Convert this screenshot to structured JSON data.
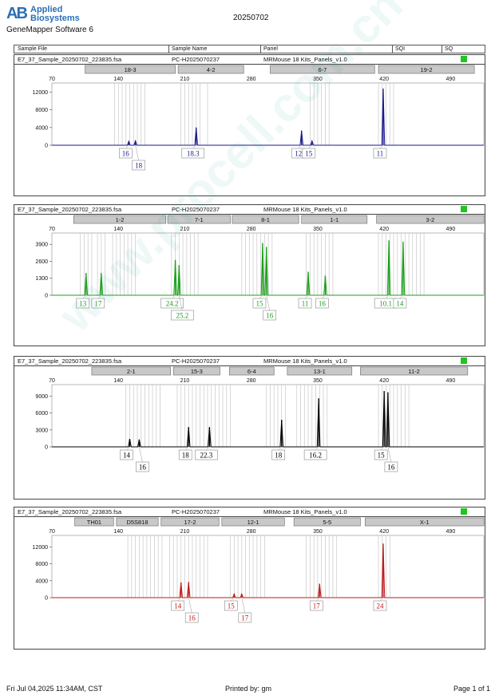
{
  "header": {
    "brand": "Applied Biosystems",
    "software": "GeneMapper Software 6",
    "run_date": "20250702"
  },
  "columns": {
    "sample_file": "Sample File",
    "sample_name": "Sample Name",
    "panel": "Panel",
    "sqi": "SQI",
    "sq": "SQ"
  },
  "sample": {
    "file": "E7_37_Sample_20250702_223835.fsa",
    "name": "PC-H2025070237",
    "panel": "MRMouse 18 Kits_Panels_v1.0"
  },
  "colors": {
    "blue": "#1a1a8c",
    "green": "#1aa01a",
    "black": "#000000",
    "red": "#c01a1a",
    "sq": "#22c322"
  },
  "chart_data": [
    {
      "type": "line",
      "channel": "blue",
      "x_ticks": [
        70,
        140,
        210,
        280,
        350,
        420,
        490
      ],
      "y_ticks": [
        0,
        4000,
        8000,
        12000
      ],
      "xlim": [
        70,
        525
      ],
      "ylim": [
        0,
        13000
      ],
      "markers": [
        {
          "label": "18-3",
          "start": 105,
          "end": 200
        },
        {
          "label": "4-2",
          "start": 203,
          "end": 272
        },
        {
          "label": "6-7",
          "start": 300,
          "end": 410
        },
        {
          "label": "19-2",
          "start": 414,
          "end": 515
        }
      ],
      "bins": [
        136,
        140,
        144,
        148,
        152,
        156,
        160,
        164,
        168,
        206,
        210,
        214,
        218,
        222,
        226,
        234,
        342,
        346,
        350,
        354,
        358,
        362,
        414,
        418,
        422,
        426,
        430
      ],
      "peaks": [
        {
          "x": 151,
          "height": 900,
          "label": "16",
          "row": 1
        },
        {
          "x": 158,
          "height": 1000,
          "label": "18",
          "row": 2
        },
        {
          "x": 222,
          "height": 4000,
          "label": "18.3",
          "row": 1
        },
        {
          "x": 333,
          "height": 3300,
          "label": "12",
          "row": 1
        },
        {
          "x": 344,
          "height": 1000,
          "label": "15",
          "row": 1
        },
        {
          "x": 419,
          "height": 12800,
          "label": "11",
          "row": 1
        }
      ]
    },
    {
      "type": "line",
      "channel": "green",
      "x_ticks": [
        70,
        140,
        210,
        280,
        350,
        420,
        490
      ],
      "y_ticks": [
        0,
        1300,
        2600,
        3900
      ],
      "xlim": [
        70,
        525
      ],
      "ylim": [
        0,
        4400
      ],
      "markers": [
        {
          "label": "1-2",
          "start": 93,
          "end": 190
        },
        {
          "label": "7-1",
          "start": 192,
          "end": 258
        },
        {
          "label": "8-1",
          "start": 260,
          "end": 330
        },
        {
          "label": "1-1",
          "start": 333,
          "end": 402
        },
        {
          "label": "3-2",
          "start": 412,
          "end": 525
        }
      ],
      "bins": [
        100,
        104,
        108,
        112,
        118,
        122,
        126,
        134,
        138,
        142,
        146,
        150,
        154,
        158,
        196,
        200,
        204,
        208,
        212,
        216,
        220,
        224,
        270,
        274,
        278,
        282,
        286,
        290,
        294,
        298,
        302,
        338,
        342,
        346,
        350,
        354,
        358,
        362,
        366,
        414,
        418,
        422,
        426,
        430,
        434,
        438,
        442,
        446,
        450,
        454,
        458,
        462
      ],
      "peaks": [
        {
          "x": 106,
          "height": 1700,
          "label": "13",
          "row": 1
        },
        {
          "x": 122,
          "height": 1700,
          "label": "17",
          "row": 1
        },
        {
          "x": 200,
          "height": 2700,
          "label": "24.2",
          "row": 1
        },
        {
          "x": 204,
          "height": 2300,
          "label": "25.2",
          "row": 2
        },
        {
          "x": 292,
          "height": 4000,
          "label": "15",
          "row": 1
        },
        {
          "x": 296,
          "height": 3700,
          "label": "16",
          "row": 2
        },
        {
          "x": 340,
          "height": 1800,
          "label": "11",
          "row": 1
        },
        {
          "x": 358,
          "height": 1500,
          "label": "16",
          "row": 1
        },
        {
          "x": 425,
          "height": 4200,
          "label": "10.1",
          "row": 1
        },
        {
          "x": 440,
          "height": 4100,
          "label": "14",
          "row": 1
        }
      ]
    },
    {
      "type": "line",
      "channel": "black",
      "x_ticks": [
        70,
        140,
        210,
        280,
        350,
        420,
        490
      ],
      "y_ticks": [
        0,
        3000,
        6000,
        9000
      ],
      "xlim": [
        70,
        525
      ],
      "ylim": [
        0,
        10200
      ],
      "markers": [
        {
          "label": "2-1",
          "start": 112,
          "end": 195
        },
        {
          "label": "15-3",
          "start": 198,
          "end": 247
        },
        {
          "label": "6-4",
          "start": 257,
          "end": 304
        },
        {
          "label": "13-1",
          "start": 318,
          "end": 386
        },
        {
          "label": "11-2",
          "start": 395,
          "end": 508
        }
      ],
      "bins": [
        148,
        152,
        156,
        160,
        164,
        168,
        172,
        176,
        180,
        184,
        202,
        206,
        210,
        214,
        218,
        222,
        226,
        230,
        234,
        238,
        242,
        246,
        250,
        254,
        258,
        296,
        300,
        304,
        308,
        312,
        316,
        328,
        332,
        336,
        340,
        344,
        348,
        352,
        356,
        360,
        414,
        418,
        422,
        426,
        430,
        434,
        438,
        442,
        446
      ],
      "peaks": [
        {
          "x": 152,
          "height": 1400,
          "label": "14",
          "row": 1
        },
        {
          "x": 162,
          "height": 1300,
          "label": "16",
          "row": 2
        },
        {
          "x": 214,
          "height": 3500,
          "label": "18",
          "row": 1
        },
        {
          "x": 236,
          "height": 3500,
          "label": "22.3",
          "row": 1
        },
        {
          "x": 312,
          "height": 4800,
          "label": "18",
          "row": 1
        },
        {
          "x": 351,
          "height": 8600,
          "label": "16.2",
          "row": 1
        },
        {
          "x": 420,
          "height": 9900,
          "label": "15",
          "row": 1
        },
        {
          "x": 424,
          "height": 9700,
          "label": "16",
          "row": 2
        }
      ]
    },
    {
      "type": "line",
      "channel": "red",
      "x_ticks": [
        70,
        140,
        210,
        280,
        350,
        420,
        490
      ],
      "y_ticks": [
        0,
        4000,
        8000,
        12000
      ],
      "xlim": [
        70,
        525
      ],
      "ylim": [
        0,
        13600
      ],
      "markers": [
        {
          "label": "TH01",
          "start": 94,
          "end": 135
        },
        {
          "label": "D5S818",
          "start": 138,
          "end": 182
        },
        {
          "label": "17-2",
          "start": 185,
          "end": 246
        },
        {
          "label": "12-1",
          "start": 249,
          "end": 315
        },
        {
          "label": "5-5",
          "start": 325,
          "end": 395
        },
        {
          "label": "X-1",
          "start": 400,
          "end": 525
        }
      ],
      "bins": [
        150,
        154,
        158,
        162,
        166,
        170,
        174,
        178,
        182,
        186,
        194,
        198,
        202,
        206,
        210,
        214,
        218,
        222,
        226,
        230,
        234,
        258,
        262,
        266,
        270,
        274,
        278,
        282,
        286,
        290,
        294,
        338,
        342,
        346,
        350,
        354,
        358,
        362,
        366,
        370,
        414,
        418,
        422,
        426
      ],
      "peaks": [
        {
          "x": 206,
          "height": 3600,
          "label": "14",
          "row": 1
        },
        {
          "x": 214,
          "height": 3700,
          "label": "16",
          "row": 2
        },
        {
          "x": 262,
          "height": 900,
          "label": "15",
          "row": 1
        },
        {
          "x": 270,
          "height": 900,
          "label": "17",
          "row": 2
        },
        {
          "x": 352,
          "height": 3300,
          "label": "17",
          "row": 1
        },
        {
          "x": 419,
          "height": 12800,
          "label": "24",
          "row": 1
        }
      ]
    }
  ],
  "footer": {
    "printed_at": "Fri Jul 04,2025 11:34AM, CST",
    "printed_by": "Printed by: gm",
    "page": "Page 1 of 1"
  },
  "watermark": "www.procell.com.cn"
}
